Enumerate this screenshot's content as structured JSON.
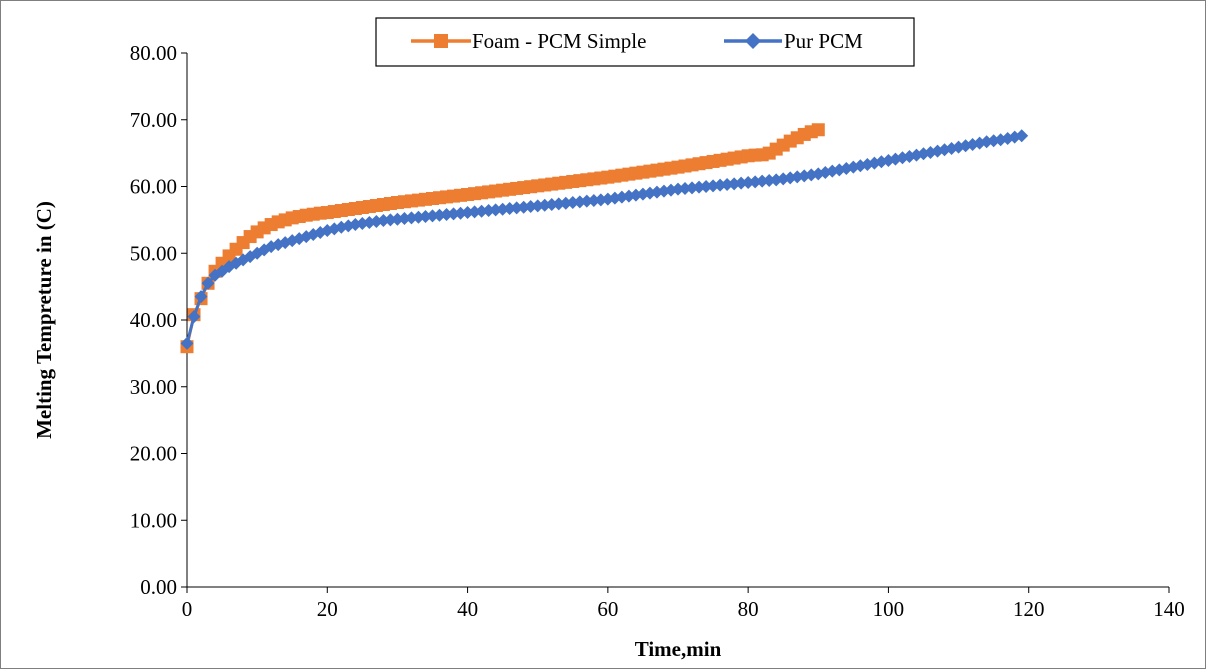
{
  "chart_data": {
    "type": "line",
    "title": "",
    "xlabel": "Time,min",
    "ylabel": "Melting Tempreture in (C)",
    "xlim": [
      0,
      140
    ],
    "ylim": [
      0,
      80
    ],
    "xticks": [
      0,
      20,
      40,
      60,
      80,
      100,
      120,
      140
    ],
    "yticks": [
      0,
      10,
      20,
      30,
      40,
      50,
      60,
      70,
      80
    ],
    "xtick_labels": [
      "0",
      "20",
      "40",
      "60",
      "80",
      "100",
      "120",
      "140"
    ],
    "ytick_labels": [
      "0.00",
      "10.00",
      "20.00",
      "30.00",
      "40.00",
      "50.00",
      "60.00",
      "70.00",
      "80.00"
    ],
    "grid": false,
    "legend_position": "top-center",
    "series": [
      {
        "name": "Foam - PCM Simple",
        "color": "#ed7d31",
        "marker": "square",
        "x": [
          0,
          1,
          2,
          3,
          4,
          5,
          6,
          7,
          8,
          9,
          10,
          11,
          12,
          13,
          14,
          15,
          16,
          17,
          18,
          19,
          20,
          21,
          22,
          23,
          24,
          25,
          26,
          27,
          28,
          29,
          30,
          31,
          32,
          33,
          34,
          35,
          36,
          37,
          38,
          39,
          40,
          41,
          42,
          43,
          44,
          45,
          46,
          47,
          48,
          49,
          50,
          51,
          52,
          53,
          54,
          55,
          56,
          57,
          58,
          59,
          60,
          61,
          62,
          63,
          64,
          65,
          66,
          67,
          68,
          69,
          70,
          71,
          72,
          73,
          74,
          75,
          76,
          77,
          78,
          79,
          80,
          81,
          82,
          83,
          84,
          85,
          86,
          87,
          88,
          89,
          90
        ],
        "y": [
          36.0,
          40.8,
          43.2,
          45.5,
          47.3,
          48.5,
          49.6,
          50.6,
          51.6,
          52.5,
          53.2,
          53.8,
          54.3,
          54.7,
          55.0,
          55.3,
          55.5,
          55.7,
          55.85,
          56.0,
          56.1,
          56.25,
          56.4,
          56.55,
          56.7,
          56.85,
          57.0,
          57.15,
          57.3,
          57.45,
          57.6,
          57.72,
          57.84,
          57.96,
          58.08,
          58.2,
          58.32,
          58.44,
          58.56,
          58.68,
          58.8,
          58.93,
          59.06,
          59.19,
          59.32,
          59.45,
          59.58,
          59.71,
          59.84,
          59.97,
          60.1,
          60.23,
          60.36,
          60.49,
          60.62,
          60.75,
          60.88,
          61.01,
          61.14,
          61.27,
          61.4,
          61.55,
          61.7,
          61.85,
          62.0,
          62.15,
          62.3,
          62.45,
          62.6,
          62.75,
          62.9,
          63.07,
          63.24,
          63.41,
          63.58,
          63.75,
          63.92,
          64.09,
          64.26,
          64.43,
          64.6,
          64.7,
          64.75,
          65.0,
          65.6,
          66.2,
          66.8,
          67.3,
          67.8,
          68.2,
          68.5
        ]
      },
      {
        "name": "Pur PCM",
        "color": "#4472c4",
        "marker": "diamond",
        "x": [
          0,
          1,
          2,
          3,
          4,
          5,
          6,
          7,
          8,
          9,
          10,
          11,
          12,
          13,
          14,
          15,
          16,
          17,
          18,
          19,
          20,
          21,
          22,
          23,
          24,
          25,
          26,
          27,
          28,
          29,
          30,
          31,
          32,
          33,
          34,
          35,
          36,
          37,
          38,
          39,
          40,
          41,
          42,
          43,
          44,
          45,
          46,
          47,
          48,
          49,
          50,
          51,
          52,
          53,
          54,
          55,
          56,
          57,
          58,
          59,
          60,
          61,
          62,
          63,
          64,
          65,
          66,
          67,
          68,
          69,
          70,
          71,
          72,
          73,
          74,
          75,
          76,
          77,
          78,
          79,
          80,
          81,
          82,
          83,
          84,
          85,
          86,
          87,
          88,
          89,
          90,
          91,
          92,
          93,
          94,
          95,
          96,
          97,
          98,
          99,
          100,
          101,
          102,
          103,
          104,
          105,
          106,
          107,
          108,
          109,
          110,
          111,
          112,
          113,
          114,
          115,
          116,
          117,
          118,
          119
        ],
        "y": [
          36.5,
          40.5,
          43.5,
          45.5,
          46.7,
          47.3,
          48.0,
          48.5,
          49.0,
          49.5,
          50.0,
          50.5,
          51.0,
          51.3,
          51.6,
          51.9,
          52.2,
          52.5,
          52.8,
          53.1,
          53.4,
          53.65,
          53.9,
          54.1,
          54.3,
          54.45,
          54.6,
          54.75,
          54.9,
          55.0,
          55.1,
          55.2,
          55.3,
          55.4,
          55.5,
          55.6,
          55.7,
          55.8,
          55.9,
          56.0,
          56.1,
          56.2,
          56.3,
          56.4,
          56.5,
          56.6,
          56.7,
          56.8,
          56.9,
          57.0,
          57.1,
          57.2,
          57.3,
          57.4,
          57.5,
          57.6,
          57.7,
          57.8,
          57.9,
          58.0,
          58.1,
          58.25,
          58.4,
          58.55,
          58.7,
          58.85,
          59.0,
          59.15,
          59.3,
          59.45,
          59.6,
          59.7,
          59.8,
          59.9,
          60.0,
          60.1,
          60.2,
          60.3,
          60.4,
          60.5,
          60.6,
          60.7,
          60.8,
          60.9,
          61.0,
          61.15,
          61.3,
          61.45,
          61.6,
          61.75,
          61.9,
          62.1,
          62.3,
          62.5,
          62.7,
          62.9,
          63.1,
          63.3,
          63.5,
          63.7,
          63.9,
          64.1,
          64.3,
          64.5,
          64.7,
          64.9,
          65.1,
          65.3,
          65.5,
          65.7,
          65.9,
          66.1,
          66.3,
          66.5,
          66.7,
          66.85,
          67.0,
          67.2,
          67.4,
          67.6
        ]
      }
    ]
  }
}
